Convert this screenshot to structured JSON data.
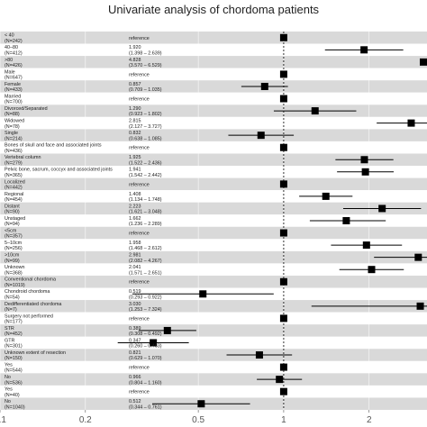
{
  "chart_data": {
    "type": "forest",
    "title": "Univariate analysis of chordoma patients",
    "x_scale": "log",
    "xlim": [
      0.1,
      3.2
    ],
    "x_ticks": [
      0.1,
      0.2,
      0.5,
      1,
      2
    ],
    "x_tick_labels": [
      "0.1",
      "0.2",
      "0.5",
      "1",
      "2"
    ],
    "reference_line": 1,
    "stripe_colors": [
      "#d9d9d9",
      "#ffffff"
    ],
    "marker_color": "#000000",
    "rows": [
      {
        "label": "< 40",
        "n": "(N=242)",
        "value_text": "reference",
        "ci_text": "",
        "hr": 1.0,
        "lo": null,
        "hi": null
      },
      {
        "label": "40–80",
        "n": "(N=412)",
        "value_text": "1.920",
        "ci_text": "(1.398 – 2.639)",
        "hr": 1.92,
        "lo": 1.398,
        "hi": 2.639
      },
      {
        "label": ">80",
        "n": "(N=426)",
        "value_text": "4.828",
        "ci_text": "(3.570 – 6.529)",
        "hr": 4.828,
        "lo": 3.57,
        "hi": 6.529
      },
      {
        "label": "Male",
        "n": "(N=647)",
        "value_text": "reference",
        "ci_text": "",
        "hr": 1.0,
        "lo": null,
        "hi": null
      },
      {
        "label": "Female",
        "n": "(N=433)",
        "value_text": "0.857",
        "ci_text": "(0.709 – 1.035)",
        "hr": 0.857,
        "lo": 0.709,
        "hi": 1.035
      },
      {
        "label": "Married",
        "n": "(N=700)",
        "value_text": "reference",
        "ci_text": "",
        "hr": 1.0,
        "lo": null,
        "hi": null
      },
      {
        "label": "Divorced/Separated",
        "n": "(N=88)",
        "value_text": "1.290",
        "ci_text": "(0.923 – 1.802)",
        "hr": 1.29,
        "lo": 0.923,
        "hi": 1.802
      },
      {
        "label": "Widowed",
        "n": "(N=78)",
        "value_text": "2.815",
        "ci_text": "(2.127 – 3.727)",
        "hr": 2.815,
        "lo": 2.127,
        "hi": 3.727
      },
      {
        "label": "Single",
        "n": "(N=214)",
        "value_text": "0.832",
        "ci_text": "(0.638 – 1.085)",
        "hr": 0.832,
        "lo": 0.638,
        "hi": 1.085
      },
      {
        "label": "Bones of skull and face and associated joints",
        "n": "(N=436)",
        "value_text": "reference",
        "ci_text": "",
        "hr": 1.0,
        "lo": null,
        "hi": null
      },
      {
        "label": "Vertebral column",
        "n": "(N=279)",
        "value_text": "1.925",
        "ci_text": "(1.522 – 2.436)",
        "hr": 1.925,
        "lo": 1.522,
        "hi": 2.436
      },
      {
        "label": "Pelvic bone, sacrum, coccyx and associated joints",
        "n": "(N=365)",
        "value_text": "1.941",
        "ci_text": "(1.542 – 2.442)",
        "hr": 1.941,
        "lo": 1.542,
        "hi": 2.442
      },
      {
        "label": "Localized",
        "n": "(N=442)",
        "value_text": "reference",
        "ci_text": "",
        "hr": 1.0,
        "lo": null,
        "hi": null
      },
      {
        "label": "Regional",
        "n": "(N=454)",
        "value_text": "1.408",
        "ci_text": "(1.134 – 1.748)",
        "hr": 1.408,
        "lo": 1.134,
        "hi": 1.748
      },
      {
        "label": "Distant",
        "n": "(N=90)",
        "value_text": "2.223",
        "ci_text": "(1.621 – 3.048)",
        "hr": 2.223,
        "lo": 1.621,
        "hi": 3.048
      },
      {
        "label": "Unstaged",
        "n": "(N=94)",
        "value_text": "1.662",
        "ci_text": "(1.236 – 2.289)",
        "hr": 1.662,
        "lo": 1.236,
        "hi": 2.289
      },
      {
        "label": "<5cm",
        "n": "(N=357)",
        "value_text": "reference",
        "ci_text": "",
        "hr": 1.0,
        "lo": null,
        "hi": null
      },
      {
        "label": "5–10cm",
        "n": "(N=256)",
        "value_text": "1.958",
        "ci_text": "(1.468 – 2.612)",
        "hr": 1.958,
        "lo": 1.468,
        "hi": 2.612
      },
      {
        "label": ">10cm",
        "n": "(N=99)",
        "value_text": "2.981",
        "ci_text": "(2.082 – 4.267)",
        "hr": 2.981,
        "lo": 2.082,
        "hi": 4.267
      },
      {
        "label": "Unknown",
        "n": "(N=368)",
        "value_text": "2.041",
        "ci_text": "(1.571 – 2.651)",
        "hr": 2.041,
        "lo": 1.571,
        "hi": 2.651
      },
      {
        "label": "Conventional chordoma",
        "n": "(N=1019)",
        "value_text": "reference",
        "ci_text": "",
        "hr": 1.0,
        "lo": null,
        "hi": null
      },
      {
        "label": "Chondroid chordoma",
        "n": "(N=54)",
        "value_text": "0.519",
        "ci_text": "(0.293 – 0.922)",
        "hr": 0.519,
        "lo": 0.293,
        "hi": 0.922
      },
      {
        "label": "Dedifferentiated chordoma",
        "n": "(N=7)",
        "value_text": "3.030",
        "ci_text": "(1.253 – 7.324)",
        "hr": 3.03,
        "lo": 1.253,
        "hi": 7.324
      },
      {
        "label": "Surgery not performed",
        "n": "(N=177)",
        "value_text": "reference",
        "ci_text": "",
        "hr": 1.0,
        "lo": null,
        "hi": null
      },
      {
        "label": "STR",
        "n": "(N=452)",
        "value_text": "0.389",
        "ci_text": "(0.308 – 0.492)",
        "hr": 0.389,
        "lo": 0.308,
        "hi": 0.492
      },
      {
        "label": "GTR",
        "n": "(N=301)",
        "value_text": "0.347",
        "ci_text": "(0.260 – 0.463)",
        "hr": 0.347,
        "lo": 0.26,
        "hi": 0.463
      },
      {
        "label": "Unknown extent of resection",
        "n": "(N=150)",
        "value_text": "0.821",
        "ci_text": "(0.629 – 1.070)",
        "hr": 0.821,
        "lo": 0.629,
        "hi": 1.07
      },
      {
        "label": "Yes",
        "n": "(N=544)",
        "value_text": "reference",
        "ci_text": "",
        "hr": 1.0,
        "lo": null,
        "hi": null
      },
      {
        "label": "No",
        "n": "(N=536)",
        "value_text": "0.966",
        "ci_text": "(0.804 – 1.160)",
        "hr": 0.966,
        "lo": 0.804,
        "hi": 1.16
      },
      {
        "label": "Yes",
        "n": "(N=40)",
        "value_text": "reference",
        "ci_text": "",
        "hr": 1.0,
        "lo": null,
        "hi": null
      },
      {
        "label": "No",
        "n": "(N=1040)",
        "value_text": "0.512",
        "ci_text": "(0.344 – 0.761)",
        "hr": 0.512,
        "lo": 0.344,
        "hi": 0.761
      }
    ]
  }
}
